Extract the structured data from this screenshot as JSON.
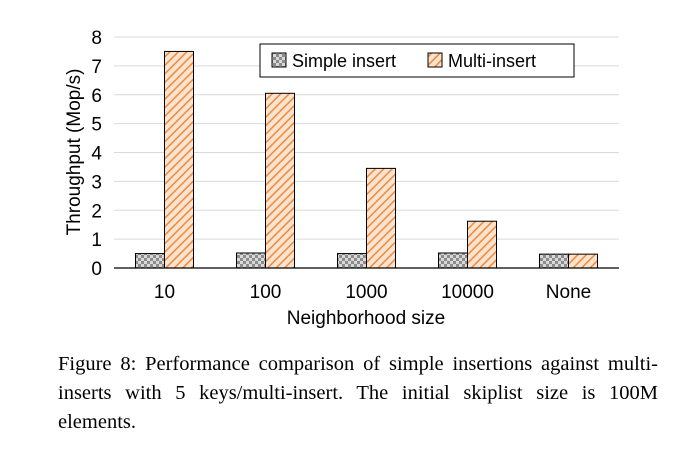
{
  "caption": "Figure 8: Performance comparison of simple insertions against multi-inserts with 5 keys/multi-insert. The initial skiplist size is 100M elements.",
  "chart_data": {
    "type": "bar",
    "xlabel": "Neighborhood size",
    "ylabel": "Throughput (Mop/s)",
    "ylim": [
      0,
      8
    ],
    "yticks": [
      0,
      1,
      2,
      3,
      4,
      5,
      6,
      7,
      8
    ],
    "grid": true,
    "legend_position": "top-right",
    "categories": [
      "10",
      "100",
      "1000",
      "10000",
      "None"
    ],
    "series": [
      {
        "name": "Simple insert",
        "values": [
          0.5,
          0.52,
          0.5,
          0.52,
          0.48
        ],
        "color": "#9a9a9a",
        "pattern": "checker"
      },
      {
        "name": "Multi-insert",
        "values": [
          7.5,
          6.05,
          3.45,
          1.62,
          0.48
        ],
        "color": "#f4a460",
        "pattern": "diagonal-hatch"
      }
    ]
  }
}
